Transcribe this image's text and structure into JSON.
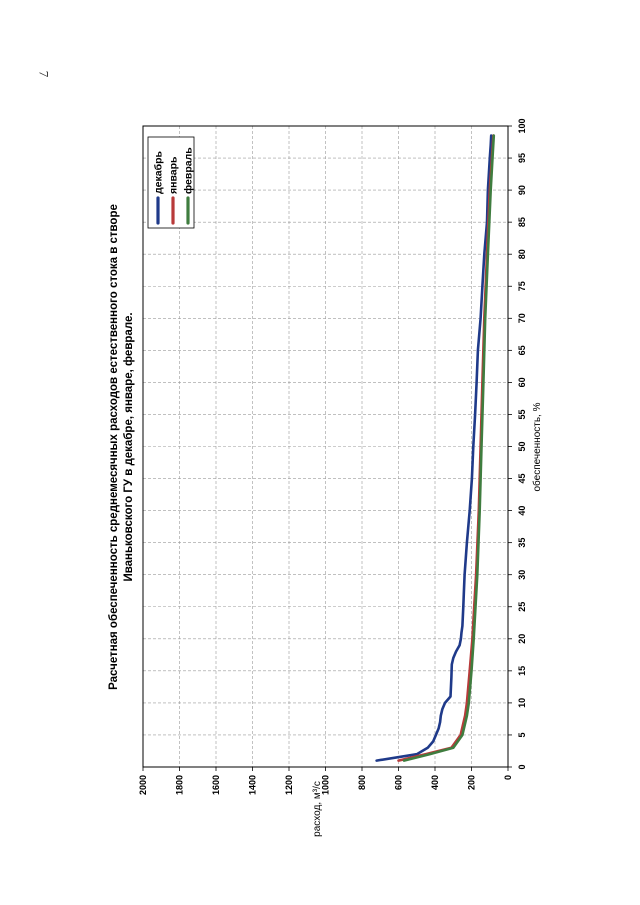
{
  "page": {
    "number": "7"
  },
  "chart_data": {
    "type": "line",
    "orientation": "rotated-90",
    "title_line1": "Расчетная обеспеченность среднемесячных расходов естественного стока в створе",
    "title_line2": "Иваньковского ГУ в декабре, январе, феврале.",
    "xlabel": "обеспеченность, %",
    "ylabel": "расход, м³/с",
    "xlim": [
      0,
      100
    ],
    "ylim": [
      0,
      2000
    ],
    "x_ticks": [
      0,
      5,
      10,
      15,
      20,
      25,
      30,
      35,
      40,
      45,
      50,
      55,
      60,
      65,
      70,
      75,
      80,
      85,
      90,
      95,
      100
    ],
    "y_ticks": [
      0,
      200,
      400,
      600,
      800,
      1000,
      1200,
      1400,
      1600,
      1800,
      2000
    ],
    "grid": true,
    "legend_position": "top-right",
    "series": [
      {
        "name": "декабрь",
        "color": "#1f3a8a",
        "x": [
          1,
          2,
          3,
          4,
          5,
          6,
          7,
          8,
          9,
          10,
          11,
          13,
          14,
          16,
          17,
          18,
          19,
          20,
          21,
          22,
          23,
          25,
          27,
          30,
          35,
          40,
          45,
          50,
          55,
          60,
          65,
          70,
          75,
          80,
          85,
          90,
          95,
          97,
          98.5
        ],
        "values": [
          720,
          500,
          440,
          410,
          395,
          380,
          372,
          368,
          360,
          345,
          315,
          312,
          310,
          308,
          300,
          285,
          265,
          258,
          255,
          250,
          248,
          245,
          242,
          238,
          225,
          210,
          198,
          190,
          180,
          172,
          165,
          150,
          140,
          130,
          115,
          110,
          100,
          95,
          92
        ]
      },
      {
        "name": "январь",
        "color": "#b83a3a",
        "x": [
          1,
          2,
          3,
          5,
          8,
          10,
          15,
          20,
          25,
          30,
          40,
          50,
          60,
          70,
          80,
          90,
          95,
          98.5
        ],
        "values": [
          600,
          450,
          310,
          260,
          235,
          225,
          210,
          195,
          185,
          175,
          160,
          150,
          140,
          130,
          115,
          100,
          88,
          80
        ]
      },
      {
        "name": "февраль",
        "color": "#3f7d3f",
        "x": [
          1,
          2,
          3,
          5,
          8,
          10,
          15,
          20,
          25,
          30,
          40,
          50,
          60,
          70,
          80,
          90,
          95,
          98.5
        ],
        "values": [
          570,
          430,
          300,
          250,
          225,
          215,
          200,
          188,
          178,
          168,
          155,
          145,
          135,
          125,
          110,
          95,
          85,
          78
        ]
      }
    ]
  }
}
